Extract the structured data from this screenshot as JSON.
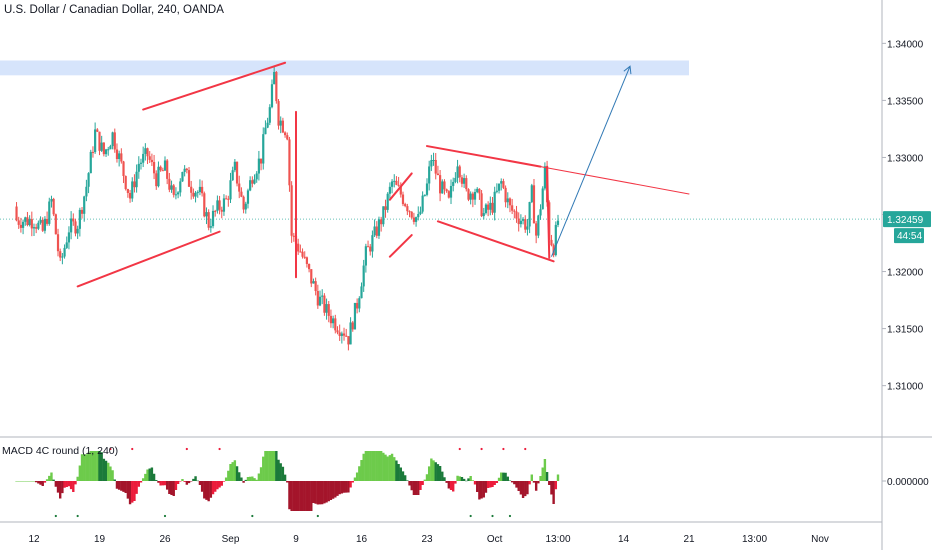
{
  "header": {
    "symbol_title": "U.S. Dollar / Canadian Dollar, 240, OANDA"
  },
  "indicator": {
    "title": "MACD 4C round (1, 240)"
  },
  "price_badges": {
    "last_price": "1.32459",
    "countdown": "44:54"
  },
  "colors": {
    "bull_candle": "#26a69a",
    "bear_candle": "#ef5350",
    "drawing_red": "#f23645",
    "arrow_blue": "#3179b5",
    "resistance_zone": "#d6e4fb",
    "price_badge": "#26a69a",
    "macd_dark_green": "#1b7a3a",
    "macd_light_green": "#6dcb4b",
    "macd_red": "#ec1c3b",
    "macd_dark_red": "#a4152b",
    "axis_text": "#131722",
    "grid_line": "#d1d4dc"
  },
  "chart_data": {
    "type": "candlestick",
    "symbol": "U.S. Dollar / Canadian Dollar",
    "timeframe": "240",
    "source": "OANDA",
    "y_axis": {
      "ticks": [
        1.34,
        1.335,
        1.33,
        1.325,
        1.32,
        1.315,
        1.31
      ],
      "tick_labels": [
        "1.34000",
        "1.33500",
        "1.33000",
        "1.32500",
        "1.32000",
        "1.31500",
        "1.31000"
      ],
      "ylim": [
        1.3055,
        1.3438
      ]
    },
    "x_axis": {
      "tick_labels": [
        "12",
        "19",
        "26",
        "Sep",
        "9",
        "16",
        "23",
        "Oct",
        "13:00",
        "14",
        "21",
        "13:00",
        "Nov"
      ],
      "tick_index": [
        0,
        30,
        60,
        90,
        120,
        150,
        180,
        211,
        240,
        270,
        300,
        330,
        360
      ]
    },
    "last_price": 1.32459,
    "price_path": [
      [
        0,
        1.3245
      ],
      [
        4,
        1.3235
      ],
      [
        8,
        1.3262
      ],
      [
        12,
        1.3205
      ],
      [
        16,
        1.3238
      ],
      [
        20,
        1.3242
      ],
      [
        24,
        1.3275
      ],
      [
        28,
        1.3322
      ],
      [
        32,
        1.3303
      ],
      [
        36,
        1.332
      ],
      [
        40,
        1.3293
      ],
      [
        44,
        1.3265
      ],
      [
        48,
        1.3295
      ],
      [
        52,
        1.3302
      ],
      [
        56,
        1.3282
      ],
      [
        60,
        1.329
      ],
      [
        64,
        1.3262
      ],
      [
        68,
        1.329
      ],
      [
        72,
        1.3275
      ],
      [
        76,
        1.3268
      ],
      [
        80,
        1.3242
      ],
      [
        84,
        1.3255
      ],
      [
        88,
        1.3262
      ],
      [
        92,
        1.329
      ],
      [
        96,
        1.3255
      ],
      [
        100,
        1.3285
      ],
      [
        104,
        1.33
      ],
      [
        106,
        1.3325
      ],
      [
        108,
        1.3342
      ],
      [
        110,
        1.3372
      ],
      [
        112,
        1.3335
      ],
      [
        116,
        1.3322
      ],
      [
        118,
        1.3232
      ],
      [
        122,
        1.3218
      ],
      [
        126,
        1.3198
      ],
      [
        130,
        1.3178
      ],
      [
        134,
        1.3165
      ],
      [
        138,
        1.3155
      ],
      [
        142,
        1.3148
      ],
      [
        144,
        1.3142
      ],
      [
        148,
        1.3172
      ],
      [
        152,
        1.3215
      ],
      [
        156,
        1.3232
      ],
      [
        160,
        1.325
      ],
      [
        164,
        1.3278
      ],
      [
        168,
        1.3268
      ],
      [
        172,
        1.3255
      ],
      [
        176,
        1.3245
      ],
      [
        180,
        1.3275
      ],
      [
        182,
        1.33
      ],
      [
        186,
        1.3275
      ],
      [
        190,
        1.326
      ],
      [
        194,
        1.3298
      ],
      [
        198,
        1.3268
      ],
      [
        202,
        1.3272
      ],
      [
        206,
        1.325
      ],
      [
        210,
        1.3258
      ],
      [
        214,
        1.3278
      ],
      [
        218,
        1.3255
      ],
      [
        222,
        1.3248
      ],
      [
        226,
        1.324
      ],
      [
        228,
        1.3268
      ],
      [
        230,
        1.3232
      ],
      [
        232,
        1.3258
      ],
      [
        234,
        1.3288
      ],
      [
        236,
        1.3232
      ],
      [
        238,
        1.3222
      ],
      [
        240,
        1.3245
      ]
    ],
    "resistance_zone": {
      "from": 1.3372,
      "to": 1.3385,
      "start_index": 0,
      "end_index": 300
    },
    "drawings": [
      {
        "type": "trendline",
        "points": [
          [
            20,
            1.3187
          ],
          [
            85,
            1.3235
          ]
        ]
      },
      {
        "type": "trendline",
        "points": [
          [
            50,
            1.3342
          ],
          [
            115,
            1.3383
          ]
        ]
      },
      {
        "type": "trendline",
        "points": [
          [
            120,
            1.3195
          ],
          [
            120,
            1.334
          ]
        ]
      },
      {
        "type": "trendline",
        "points": [
          [
            163,
            1.3213
          ],
          [
            173,
            1.3232
          ]
        ]
      },
      {
        "type": "trendline",
        "points": [
          [
            163,
            1.3263
          ],
          [
            173,
            1.3286
          ]
        ]
      },
      {
        "type": "trendline",
        "points": [
          [
            180,
            1.331
          ],
          [
            232,
            1.3292
          ]
        ]
      },
      {
        "type": "trendline",
        "points": [
          [
            232,
            1.3292
          ],
          [
            300,
            1.3268
          ]
        ]
      },
      {
        "type": "trendline",
        "points": [
          [
            185,
            1.3244
          ],
          [
            238,
            1.3209
          ]
        ]
      },
      {
        "type": "trendline",
        "points": [
          [
            235,
            1.3292
          ],
          [
            236,
            1.3212
          ]
        ]
      },
      {
        "type": "arrow",
        "points": [
          [
            237,
            1.3213
          ],
          [
            273,
            1.338
          ]
        ]
      }
    ]
  }
}
